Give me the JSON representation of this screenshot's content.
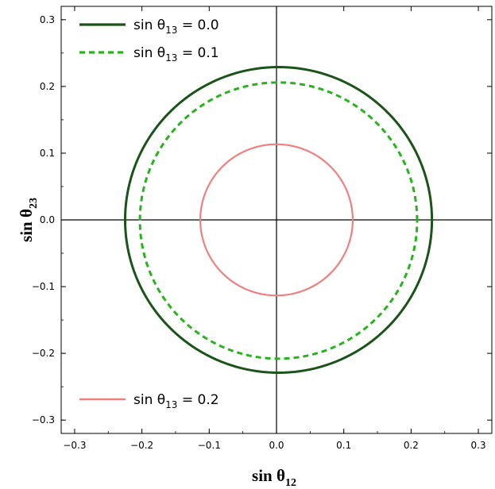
{
  "chart_data": {
    "type": "line",
    "xlabel": {
      "main": "sin θ",
      "sub": "12"
    },
    "ylabel": {
      "main": "sin θ",
      "sub": "23"
    },
    "xlim": [
      -0.32,
      0.32
    ],
    "ylim": [
      -0.32,
      0.32
    ],
    "xticks": [
      -0.3,
      -0.2,
      -0.1,
      0.0,
      0.1,
      0.2,
      0.3
    ],
    "yticks": [
      -0.3,
      -0.2,
      -0.1,
      0.0,
      0.1,
      0.2,
      0.3
    ],
    "xtick_labels": [
      "−0.3",
      "−0.2",
      "−0.1",
      "0.0",
      "0.1",
      "0.2",
      "0.3"
    ],
    "ytick_labels": [
      "−0.3",
      "−0.2",
      "−0.1",
      "0.0",
      "0.1",
      "0.2",
      "0.3"
    ],
    "grid": false,
    "series": [
      {
        "name": "sin θ13 = 0.0",
        "legend": {
          "pre": "sin θ",
          "sub": "13",
          "post": " = 0.0"
        },
        "legend_position": "top-left",
        "color": "#1a5418",
        "dash": "solid",
        "center": [
          0.003,
          0.0
        ],
        "radius_x": 0.228,
        "radius_y": 0.229
      },
      {
        "name": "sin θ13 = 0.1",
        "legend": {
          "pre": "sin θ",
          "sub": "13",
          "post": " = 0.1"
        },
        "legend_position": "top-left",
        "color": "#26b31c",
        "dash": "dashed",
        "center": [
          0.003,
          -0.001
        ],
        "radius_x": 0.206,
        "radius_y": 0.207
      },
      {
        "name": "sin θ13 = 0.2",
        "legend": {
          "pre": "sin θ",
          "sub": "13",
          "post": " = 0.2"
        },
        "legend_position": "bottom-left",
        "color": "#f08080",
        "dash": "solid",
        "center": [
          0.0,
          0.0
        ],
        "radius_x": 0.113,
        "radius_y": 0.113,
        "tilt": 0.008
      }
    ]
  }
}
